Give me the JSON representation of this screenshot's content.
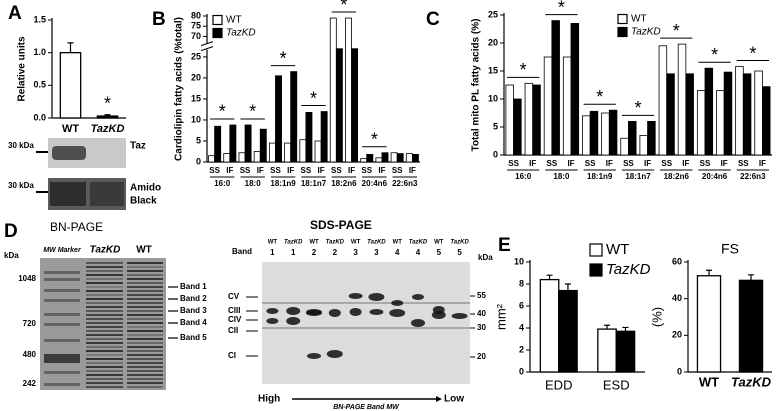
{
  "panel_labels": [
    "A",
    "B",
    "C",
    "D",
    "E"
  ],
  "chart_data": [
    {
      "type": "bar",
      "ylabel": "Relative units",
      "categories": [
        "WT",
        "TazKD"
      ],
      "values": [
        1.0,
        0.03
      ],
      "errors": [
        0.15,
        0.02
      ],
      "colors": [
        "#ffffff",
        "#000000"
      ],
      "ylim": [
        0,
        1.5
      ],
      "yticks": [
        {
          "value": 0,
          "label": "0.0"
        },
        {
          "value": 0.5,
          "label": "0.5"
        },
        {
          "value": 1.0,
          "label": "1.0"
        },
        {
          "value": 1.5,
          "label": "1.5"
        }
      ],
      "significance": [
        null,
        "*"
      ]
    },
    {
      "type": "grouped_bar",
      "ylabel": "Cardiolipin fatty acids (%total)",
      "groups": [
        "16:0",
        "18:0",
        "18:1n9",
        "18:1n7",
        "18:2n6",
        "20:4n6",
        "22:6n3"
      ],
      "categories": [
        "SS",
        "IF",
        "SS",
        "IF",
        "SS",
        "IF",
        "SS",
        "IF",
        "SS",
        "IF",
        "SS",
        "IF",
        "SS",
        "IF"
      ],
      "series": [
        {
          "name": "WT",
          "color": "#ffffff",
          "values": [
            1.5,
            2.0,
            2.2,
            2.5,
            4.5,
            4.5,
            5.3,
            5.0,
            79,
            79,
            0.8,
            1.0,
            2.2,
            2.0
          ]
        },
        {
          "name": "TazKD",
          "color": "#000000",
          "values": [
            8.5,
            8.8,
            8.8,
            7.8,
            20.5,
            21.5,
            11.8,
            12.0,
            43,
            43,
            1.8,
            2.2,
            2.0,
            1.8
          ]
        }
      ],
      "ylim": [
        0,
        80
      ],
      "axis_break": [
        25,
        70
      ],
      "yticks": [
        0,
        5,
        10,
        15,
        20,
        25,
        70,
        75,
        80
      ],
      "legend": "upper left",
      "significance": [
        "*",
        "*",
        "*",
        "*",
        "*",
        "*",
        null
      ]
    },
    {
      "type": "grouped_bar",
      "ylabel": "Total mito PL fatty acids (%)",
      "groups": [
        "16:0",
        "18:0",
        "18:1n9",
        "18:1n7",
        "18:2n6",
        "20:4n6",
        "22:6n3"
      ],
      "categories": [
        "SS",
        "IF",
        "SS",
        "IF",
        "SS",
        "IF",
        "SS",
        "IF",
        "SS",
        "IF",
        "SS",
        "IF",
        "SS",
        "IF"
      ],
      "series": [
        {
          "name": "WT",
          "color": "#ffffff",
          "values": [
            12.5,
            12.8,
            17.5,
            17.5,
            7.0,
            7.5,
            3.0,
            3.5,
            19.5,
            19.8,
            11.5,
            11.5,
            15.8,
            15.0
          ]
        },
        {
          "name": "TazKD",
          "color": "#000000",
          "values": [
            10.0,
            12.5,
            24.0,
            23.5,
            7.8,
            8.0,
            6.0,
            6.0,
            14.5,
            14.5,
            15.5,
            14.8,
            14.5,
            12.2
          ]
        }
      ],
      "ylim": [
        0,
        25
      ],
      "yticks": [
        0,
        5,
        10,
        15,
        20,
        25
      ],
      "legend": "upper center",
      "significance": [
        "*",
        "*",
        "*",
        "*",
        "*",
        "*",
        "*"
      ]
    },
    {
      "type": "grouped_bar",
      "ylabel": "mm²",
      "categories": [
        "EDD",
        "ESD"
      ],
      "series": [
        {
          "name": "WT",
          "color": "#ffffff",
          "values": [
            8.4,
            3.9
          ],
          "errors": [
            0.4,
            0.35
          ]
        },
        {
          "name": "TazKD",
          "color": "#000000",
          "values": [
            7.4,
            3.7
          ],
          "errors": [
            0.6,
            0.35
          ]
        }
      ],
      "ylim": [
        0,
        10
      ],
      "yticks": [
        0,
        2,
        4,
        6,
        8,
        10
      ],
      "legend": "upper right"
    },
    {
      "type": "bar",
      "title": "FS",
      "ylabel": "(%)",
      "categories": [
        "WT",
        "TazKD"
      ],
      "values": [
        52.5,
        50
      ],
      "errors": [
        3,
        3
      ],
      "colors": [
        "#ffffff",
        "#000000"
      ],
      "ylim": [
        0,
        60
      ],
      "yticks": [
        0,
        20,
        40,
        60
      ]
    }
  ],
  "blot": {
    "markers": [
      "30 kDa",
      "30 kDa"
    ],
    "labels": [
      "Taz",
      "Amido",
      "Black"
    ]
  },
  "bn_page": {
    "title": "BN-PAGE",
    "unit": "kDa",
    "lanes": [
      "MW Marker",
      "TazKD",
      "WT"
    ],
    "markers": [
      "1048",
      "720",
      "480",
      "242"
    ],
    "bands": [
      "Band 1",
      "Band 2",
      "Band 3",
      "Band 4",
      "Band 5"
    ]
  },
  "sds_page": {
    "title": "SDS-PAGE",
    "band_label": "Band",
    "lanes": [
      "WT",
      "TazKD",
      "WT",
      "TazKD",
      "WT",
      "TazKD",
      "WT",
      "TazKD",
      "WT",
      "TazKD"
    ],
    "lane_bands": [
      "1",
      "1",
      "2",
      "2",
      "3",
      "3",
      "4",
      "4",
      "5",
      "5"
    ],
    "unit": "kDa",
    "complexes": [
      "CV",
      "CIII",
      "CIV",
      "CII",
      "CI"
    ],
    "markers": [
      "55",
      "40",
      "30",
      "20"
    ],
    "axis_left": "High",
    "axis_right": "Low",
    "axis_label": "BN-PAGE Band MW"
  }
}
